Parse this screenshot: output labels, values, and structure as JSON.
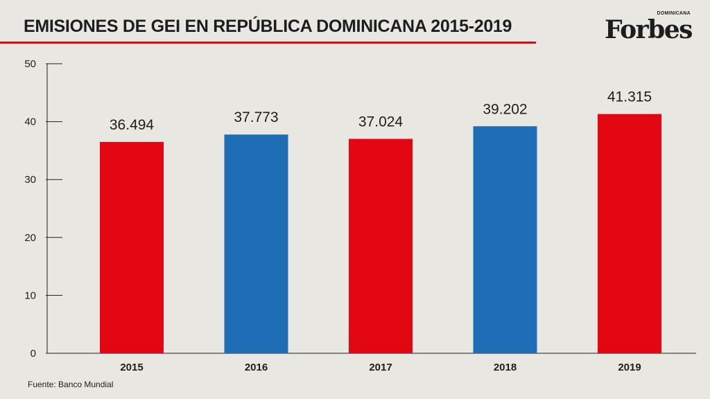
{
  "header": {
    "title": "EMISIONES DE GEI EN REPÚBLICA DOMINICANA 2015-2019"
  },
  "brand": {
    "name": "Forbes",
    "edition": "DOMINICANA"
  },
  "footer": {
    "source": "Fuente: Banco Mundial"
  },
  "colors": {
    "red": "#e30613",
    "blue": "#1f6db5",
    "text": "#1d1d1d",
    "background": "#e9e7e2"
  },
  "chart_data": {
    "type": "bar",
    "title": "EMISIONES DE GEI EN REPÚBLICA DOMINICANA 2015-2019",
    "xlabel": "",
    "ylabel": "",
    "categories": [
      "2015",
      "2016",
      "2017",
      "2018",
      "2019"
    ],
    "values": [
      36.494,
      37.773,
      37.024,
      39.202,
      41.315
    ],
    "value_labels": [
      "36.494",
      "37.773",
      "37.024",
      "39.202",
      "41.315"
    ],
    "bar_colors": [
      "#e30613",
      "#1f6db5",
      "#e30613",
      "#1f6db5",
      "#e30613"
    ],
    "ylim": [
      0,
      50
    ],
    "yticks": [
      0,
      10,
      20,
      30,
      40,
      50
    ],
    "grid": false,
    "legend": "none"
  }
}
